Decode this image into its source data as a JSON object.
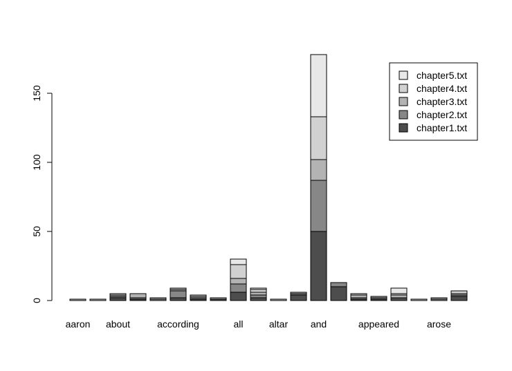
{
  "chart_data": {
    "type": "bar",
    "stacked": true,
    "categories": [
      "aaron",
      "",
      "about",
      "",
      "",
      "according",
      "",
      "",
      "all",
      "",
      "altar",
      "",
      "and",
      "",
      "",
      "appeared",
      "",
      "",
      "arose",
      ""
    ],
    "series": [
      {
        "name": "chapter1.txt",
        "color": "#4d4d4d",
        "values": [
          0,
          0,
          2,
          1,
          0,
          2,
          1,
          1,
          6,
          2,
          0,
          4,
          50,
          10,
          1,
          1,
          2,
          0,
          0,
          3
        ]
      },
      {
        "name": "chapter2.txt",
        "color": "#878787",
        "values": [
          0,
          0,
          1,
          1,
          1,
          5,
          1,
          0,
          6,
          2,
          0,
          1,
          37,
          3,
          1,
          1,
          0,
          0,
          1,
          1
        ]
      },
      {
        "name": "chapter3.txt",
        "color": "#b3b3b3",
        "values": [
          1,
          1,
          1,
          3,
          1,
          1,
          1,
          1,
          4,
          2,
          1,
          1,
          15,
          0,
          2,
          1,
          2,
          1,
          1,
          1
        ]
      },
      {
        "name": "chapter4.txt",
        "color": "#d1d1d1",
        "values": [
          0,
          0,
          1,
          0,
          0,
          1,
          1,
          0,
          10,
          2,
          0,
          0,
          31,
          0,
          1,
          0,
          1,
          0,
          0,
          2
        ]
      },
      {
        "name": "chapter5.txt",
        "color": "#e8e8e8",
        "values": [
          0,
          0,
          0,
          0,
          0,
          0,
          0,
          0,
          4,
          1,
          0,
          0,
          45,
          0,
          0,
          0,
          4,
          0,
          0,
          0
        ]
      }
    ],
    "ylim": [
      0,
      180
    ],
    "yticks": [
      0,
      50,
      100,
      150
    ],
    "legend_placement": "top-right",
    "legend_order": [
      "chapter5.txt",
      "chapter4.txt",
      "chapter3.txt",
      "chapter2.txt",
      "chapter1.txt"
    ],
    "grid": false
  }
}
